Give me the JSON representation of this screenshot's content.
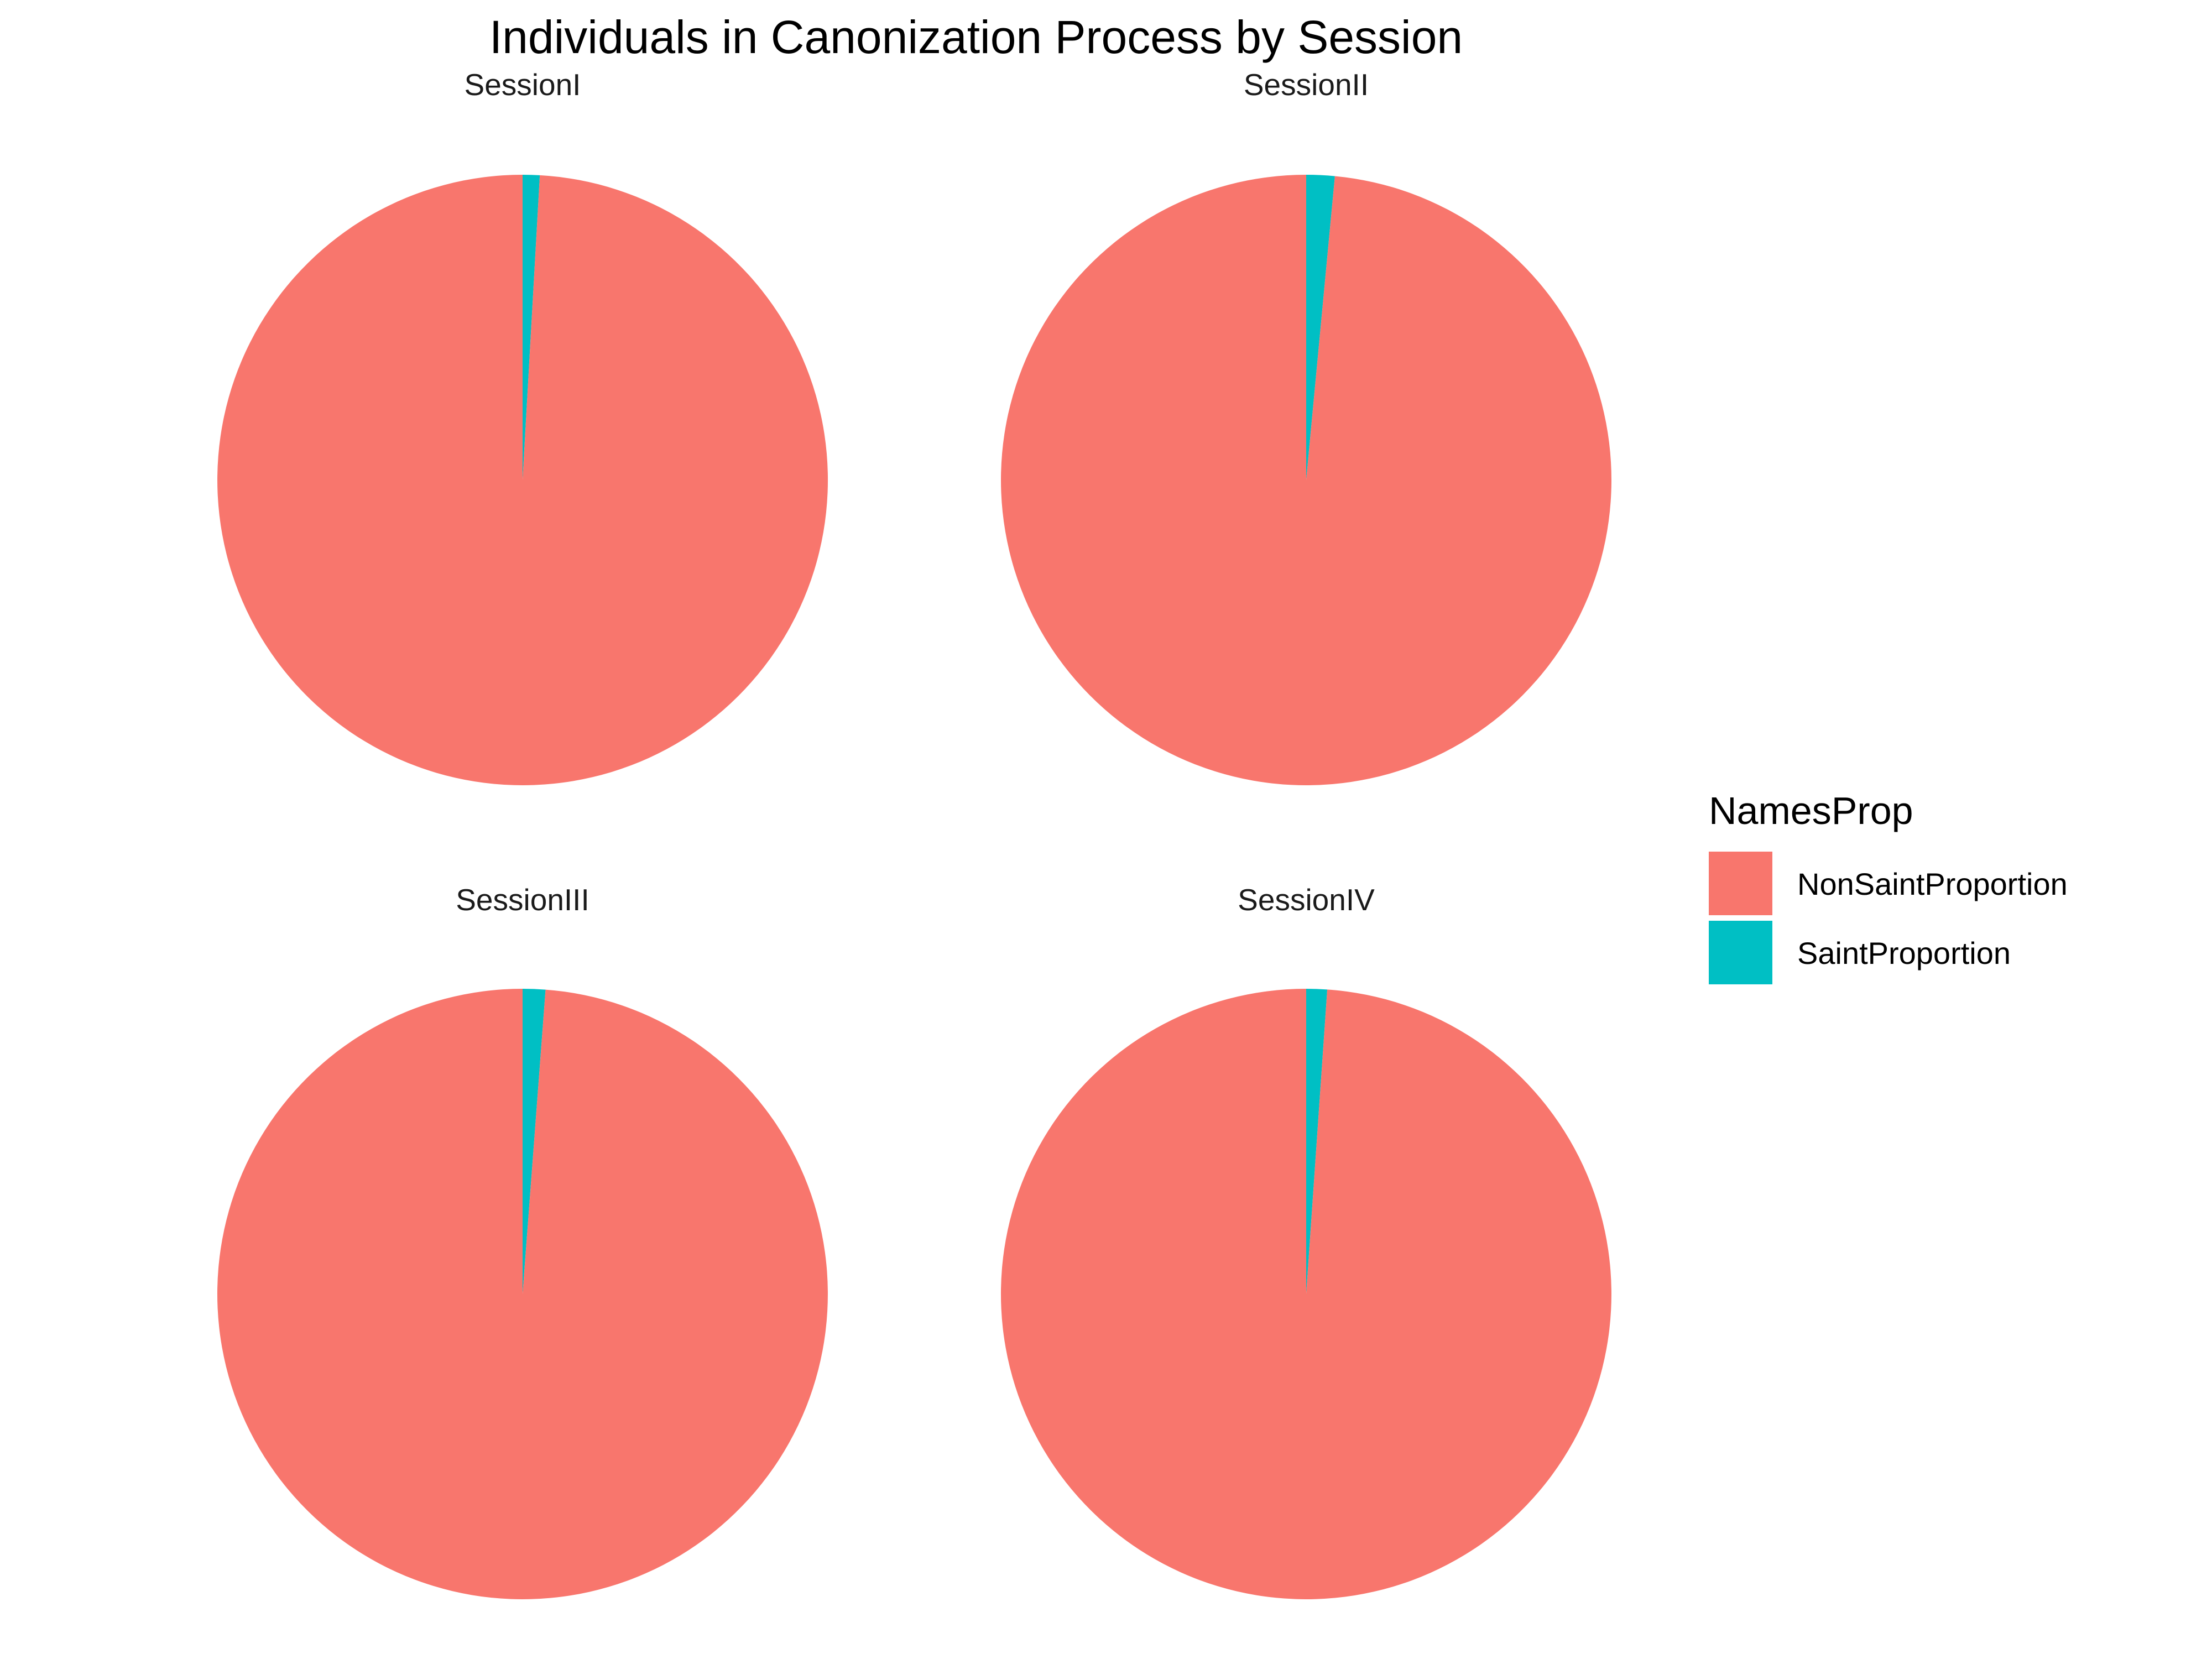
{
  "colors": {
    "NonSaintProportion": "#F8766D",
    "SaintProportion": "#00BFC4"
  },
  "chart_data": {
    "type": "pie",
    "title": "Individuals in Canonization Process by Session",
    "legend": {
      "title": "NamesProp",
      "placement": "right",
      "entries": [
        "NonSaintProportion",
        "SaintProportion"
      ]
    },
    "categories": [
      "NonSaintProportion",
      "SaintProportion"
    ],
    "facets": [
      {
        "name": "SessionI",
        "values": [
          0.991,
          0.009
        ]
      },
      {
        "name": "SessionII",
        "values": [
          0.985,
          0.015
        ]
      },
      {
        "name": "SessionIII",
        "values": [
          0.988,
          0.012
        ]
      },
      {
        "name": "SessionIV",
        "values": [
          0.989,
          0.011
        ]
      }
    ]
  }
}
